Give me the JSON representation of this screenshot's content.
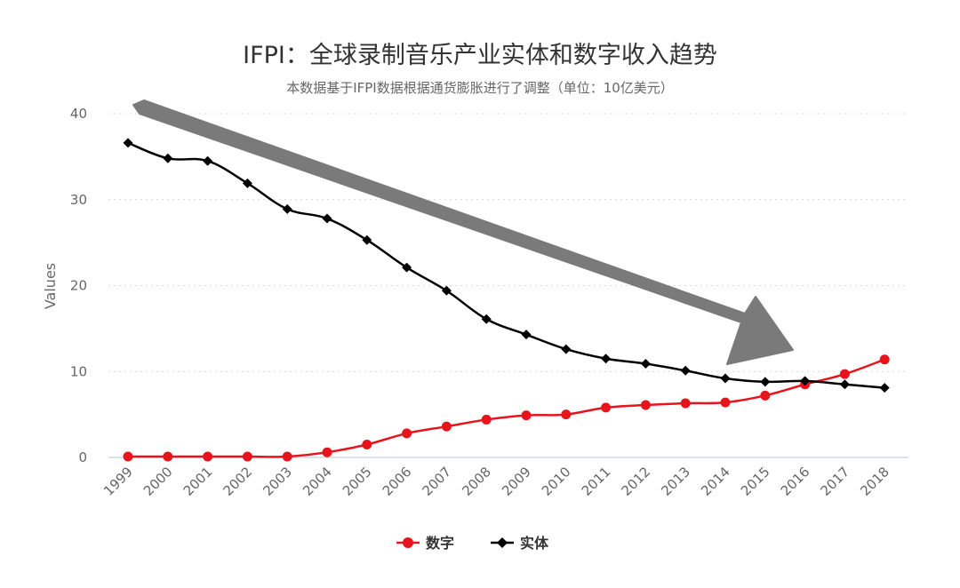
{
  "chart_data": {
    "type": "line",
    "title": "IFPI：全球录制音乐产业实体和数字收入趋势",
    "subtitle": "本数据基于IFPI数据根据通货膨胀进行了调整（单位：10亿美元）",
    "ylabel": "Values",
    "xlabel": "",
    "ylim": [
      0,
      40
    ],
    "yticks": [
      "0",
      "10",
      "20",
      "30",
      "40"
    ],
    "categories": [
      "1999",
      "2000",
      "2001",
      "2002",
      "2003",
      "2004",
      "2005",
      "2006",
      "2007",
      "2008",
      "2009",
      "2010",
      "2011",
      "2012",
      "2013",
      "2014",
      "2015",
      "2016",
      "2017",
      "2018"
    ],
    "grid": "horizontal-dotted",
    "legend_position": "bottom",
    "series": [
      {
        "name": "数字",
        "color": "#e8141b",
        "marker": "circle",
        "values": [
          0.1,
          0.1,
          0.1,
          0.1,
          0.1,
          0.6,
          1.5,
          2.8,
          3.6,
          4.4,
          4.9,
          5.0,
          5.8,
          6.1,
          6.3,
          6.4,
          7.2,
          8.5,
          9.7,
          11.4
        ]
      },
      {
        "name": "实体",
        "color": "#000000",
        "marker": "diamond",
        "values": [
          36.6,
          34.8,
          34.5,
          31.9,
          28.9,
          27.8,
          25.3,
          22.1,
          19.4,
          16.1,
          14.3,
          12.6,
          11.5,
          10.9,
          10.1,
          9.2,
          8.8,
          8.9,
          8.5,
          8.1
        ]
      }
    ]
  }
}
